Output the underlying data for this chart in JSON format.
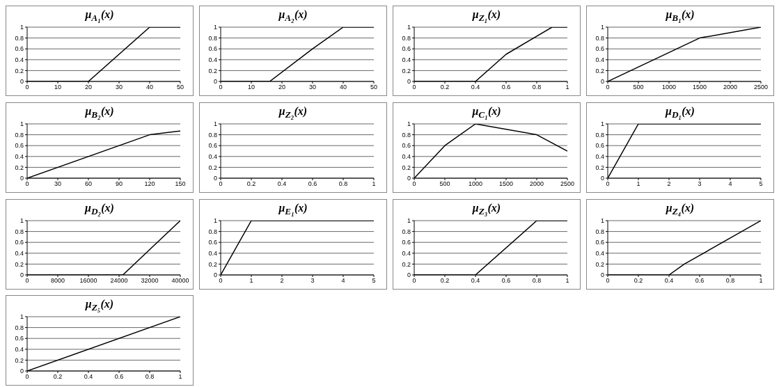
{
  "chart_data": [
    {
      "type": "line",
      "title": "μ$_{A₁}$(x)",
      "x": [
        0,
        20,
        40,
        50
      ],
      "values": [
        0,
        0,
        1,
        1
      ],
      "color": "#000000",
      "xlim": [
        0,
        50
      ],
      "xticks": [
        0,
        10,
        20,
        30,
        40,
        50
      ],
      "ylim": [
        0,
        1
      ],
      "yticks": [
        0,
        0.2,
        0.4,
        0.6,
        0.8,
        1
      ],
      "grid": "y"
    },
    {
      "type": "line",
      "title": "μ$_{A₂}$(x)",
      "x": [
        0,
        16,
        30,
        40,
        50
      ],
      "values": [
        0,
        0,
        0.6,
        1,
        1
      ],
      "color": "#000000",
      "xlim": [
        0,
        50
      ],
      "xticks": [
        0,
        10,
        20,
        30,
        40,
        50
      ],
      "ylim": [
        0,
        1
      ],
      "yticks": [
        0,
        0.2,
        0.4,
        0.6,
        0.8,
        1
      ],
      "grid": "y"
    },
    {
      "type": "line",
      "title": "μ$_{Z₁}$(x)",
      "x": [
        0,
        0.4,
        0.6,
        0.9,
        1
      ],
      "values": [
        0,
        0,
        0.5,
        1,
        1
      ],
      "color": "#000000",
      "xlim": [
        0,
        1
      ],
      "xticks": [
        0,
        0.2,
        0.4,
        0.6,
        0.8,
        1
      ],
      "ylim": [
        0,
        1
      ],
      "yticks": [
        0,
        0.2,
        0.4,
        0.6,
        0.8,
        1
      ],
      "grid": "y"
    },
    {
      "type": "line",
      "title": "μ$_{B₁}$(x)",
      "x": [
        0,
        1500,
        2500
      ],
      "values": [
        0,
        0.8,
        1
      ],
      "color": "#000000",
      "xlim": [
        0,
        2500
      ],
      "xticks": [
        0,
        500,
        1000,
        1500,
        2000,
        2500
      ],
      "ylim": [
        0,
        1
      ],
      "yticks": [
        0,
        0.2,
        0.4,
        0.6,
        0.8,
        1
      ],
      "grid": "y"
    },
    {
      "type": "line",
      "title": "μ$_{B₂}$(x)",
      "x": [
        0,
        120,
        150
      ],
      "values": [
        0,
        0.8,
        0.87
      ],
      "color": "#000000",
      "xlim": [
        0,
        150
      ],
      "xticks": [
        0,
        30,
        60,
        90,
        120,
        150
      ],
      "ylim": [
        0,
        1
      ],
      "yticks": [
        0,
        0.2,
        0.4,
        0.6,
        0.8,
        1
      ],
      "grid": "y"
    },
    {
      "type": "line",
      "title": "μ$_{Z₂}$(x)",
      "color": "#000000",
      "xlim": [
        0,
        1
      ],
      "xticks": [
        0,
        0.2,
        0.4,
        0.6,
        0.8,
        1
      ],
      "ylim": [
        0,
        1
      ],
      "yticks": [
        0,
        0.2,
        0.4,
        0.6,
        0.8,
        1
      ],
      "grid": "y"
    },
    {
      "type": "line",
      "title": "μ$_{C₁}$(x)",
      "x": [
        0,
        500,
        1000,
        2000,
        2500
      ],
      "values": [
        0,
        0.6,
        1,
        0.8,
        0.5
      ],
      "color": "#000000",
      "xlim": [
        0,
        2500
      ],
      "xticks": [
        0,
        500,
        1000,
        1500,
        2000,
        2500
      ],
      "ylim": [
        0,
        1
      ],
      "yticks": [
        0,
        0.2,
        0.4,
        0.6,
        0.8,
        1
      ],
      "grid": "y"
    },
    {
      "type": "line",
      "title": "μ$_{D₁}$(x)",
      "x": [
        0,
        1,
        5
      ],
      "values": [
        0,
        1,
        1
      ],
      "color": "#000000",
      "xlim": [
        0,
        5
      ],
      "xticks": [
        0,
        1,
        2,
        3,
        4,
        5
      ],
      "ylim": [
        0,
        1
      ],
      "yticks": [
        0,
        0.2,
        0.4,
        0.6,
        0.8,
        1
      ],
      "grid": "y"
    },
    {
      "type": "line",
      "title": "μ$_{D₂}$(x)",
      "x": [
        0,
        25000,
        40000
      ],
      "values": [
        0,
        0,
        1
      ],
      "color": "#000000",
      "xlim": [
        0,
        40000
      ],
      "xticks": [
        0,
        8000,
        16000,
        24000,
        32000,
        40000
      ],
      "ylim": [
        0,
        1
      ],
      "yticks": [
        0,
        0.2,
        0.4,
        0.6,
        0.8,
        1
      ],
      "grid": "y"
    },
    {
      "type": "line",
      "title": "μ$_{E₁}$(x)",
      "x": [
        0,
        1,
        5
      ],
      "values": [
        0,
        1,
        1
      ],
      "color": "#000000",
      "xlim": [
        0,
        5
      ],
      "xticks": [
        0,
        1,
        2,
        3,
        4,
        5
      ],
      "ylim": [
        0,
        1
      ],
      "yticks": [
        0,
        0.2,
        0.4,
        0.6,
        0.8,
        1
      ],
      "grid": "y"
    },
    {
      "type": "line",
      "title": "μ$_{Z₃}$(x)",
      "x": [
        0,
        0.4,
        0.8,
        1
      ],
      "values": [
        0,
        0,
        1,
        1
      ],
      "color": "#000000",
      "xlim": [
        0,
        1
      ],
      "xticks": [
        0,
        0.2,
        0.4,
        0.6,
        0.8,
        1
      ],
      "ylim": [
        0,
        1
      ],
      "yticks": [
        0,
        0.2,
        0.4,
        0.6,
        0.8,
        1
      ],
      "grid": "y"
    },
    {
      "type": "line",
      "title": "μ$_{Z₄}$(x)",
      "x": [
        0,
        0.4,
        0.5,
        1
      ],
      "values": [
        0,
        0,
        0.2,
        1
      ],
      "color": "#000000",
      "xlim": [
        0,
        1
      ],
      "xticks": [
        0,
        0.2,
        0.4,
        0.6,
        0.8,
        1
      ],
      "ylim": [
        0,
        1
      ],
      "yticks": [
        0,
        0.2,
        0.4,
        0.6,
        0.8,
        1
      ],
      "grid": "y"
    },
    {
      "type": "line",
      "title": "μ$_{Z₅}$(x)",
      "x": [
        0,
        1
      ],
      "values": [
        0,
        1
      ],
      "color": "#000000",
      "xlim": [
        0,
        1
      ],
      "xticks": [
        0,
        0.2,
        0.4,
        0.6,
        0.8,
        1
      ],
      "ylim": [
        0,
        1
      ],
      "yticks": [
        0,
        0.2,
        0.4,
        0.6,
        0.8,
        1
      ],
      "grid": "y"
    }
  ]
}
